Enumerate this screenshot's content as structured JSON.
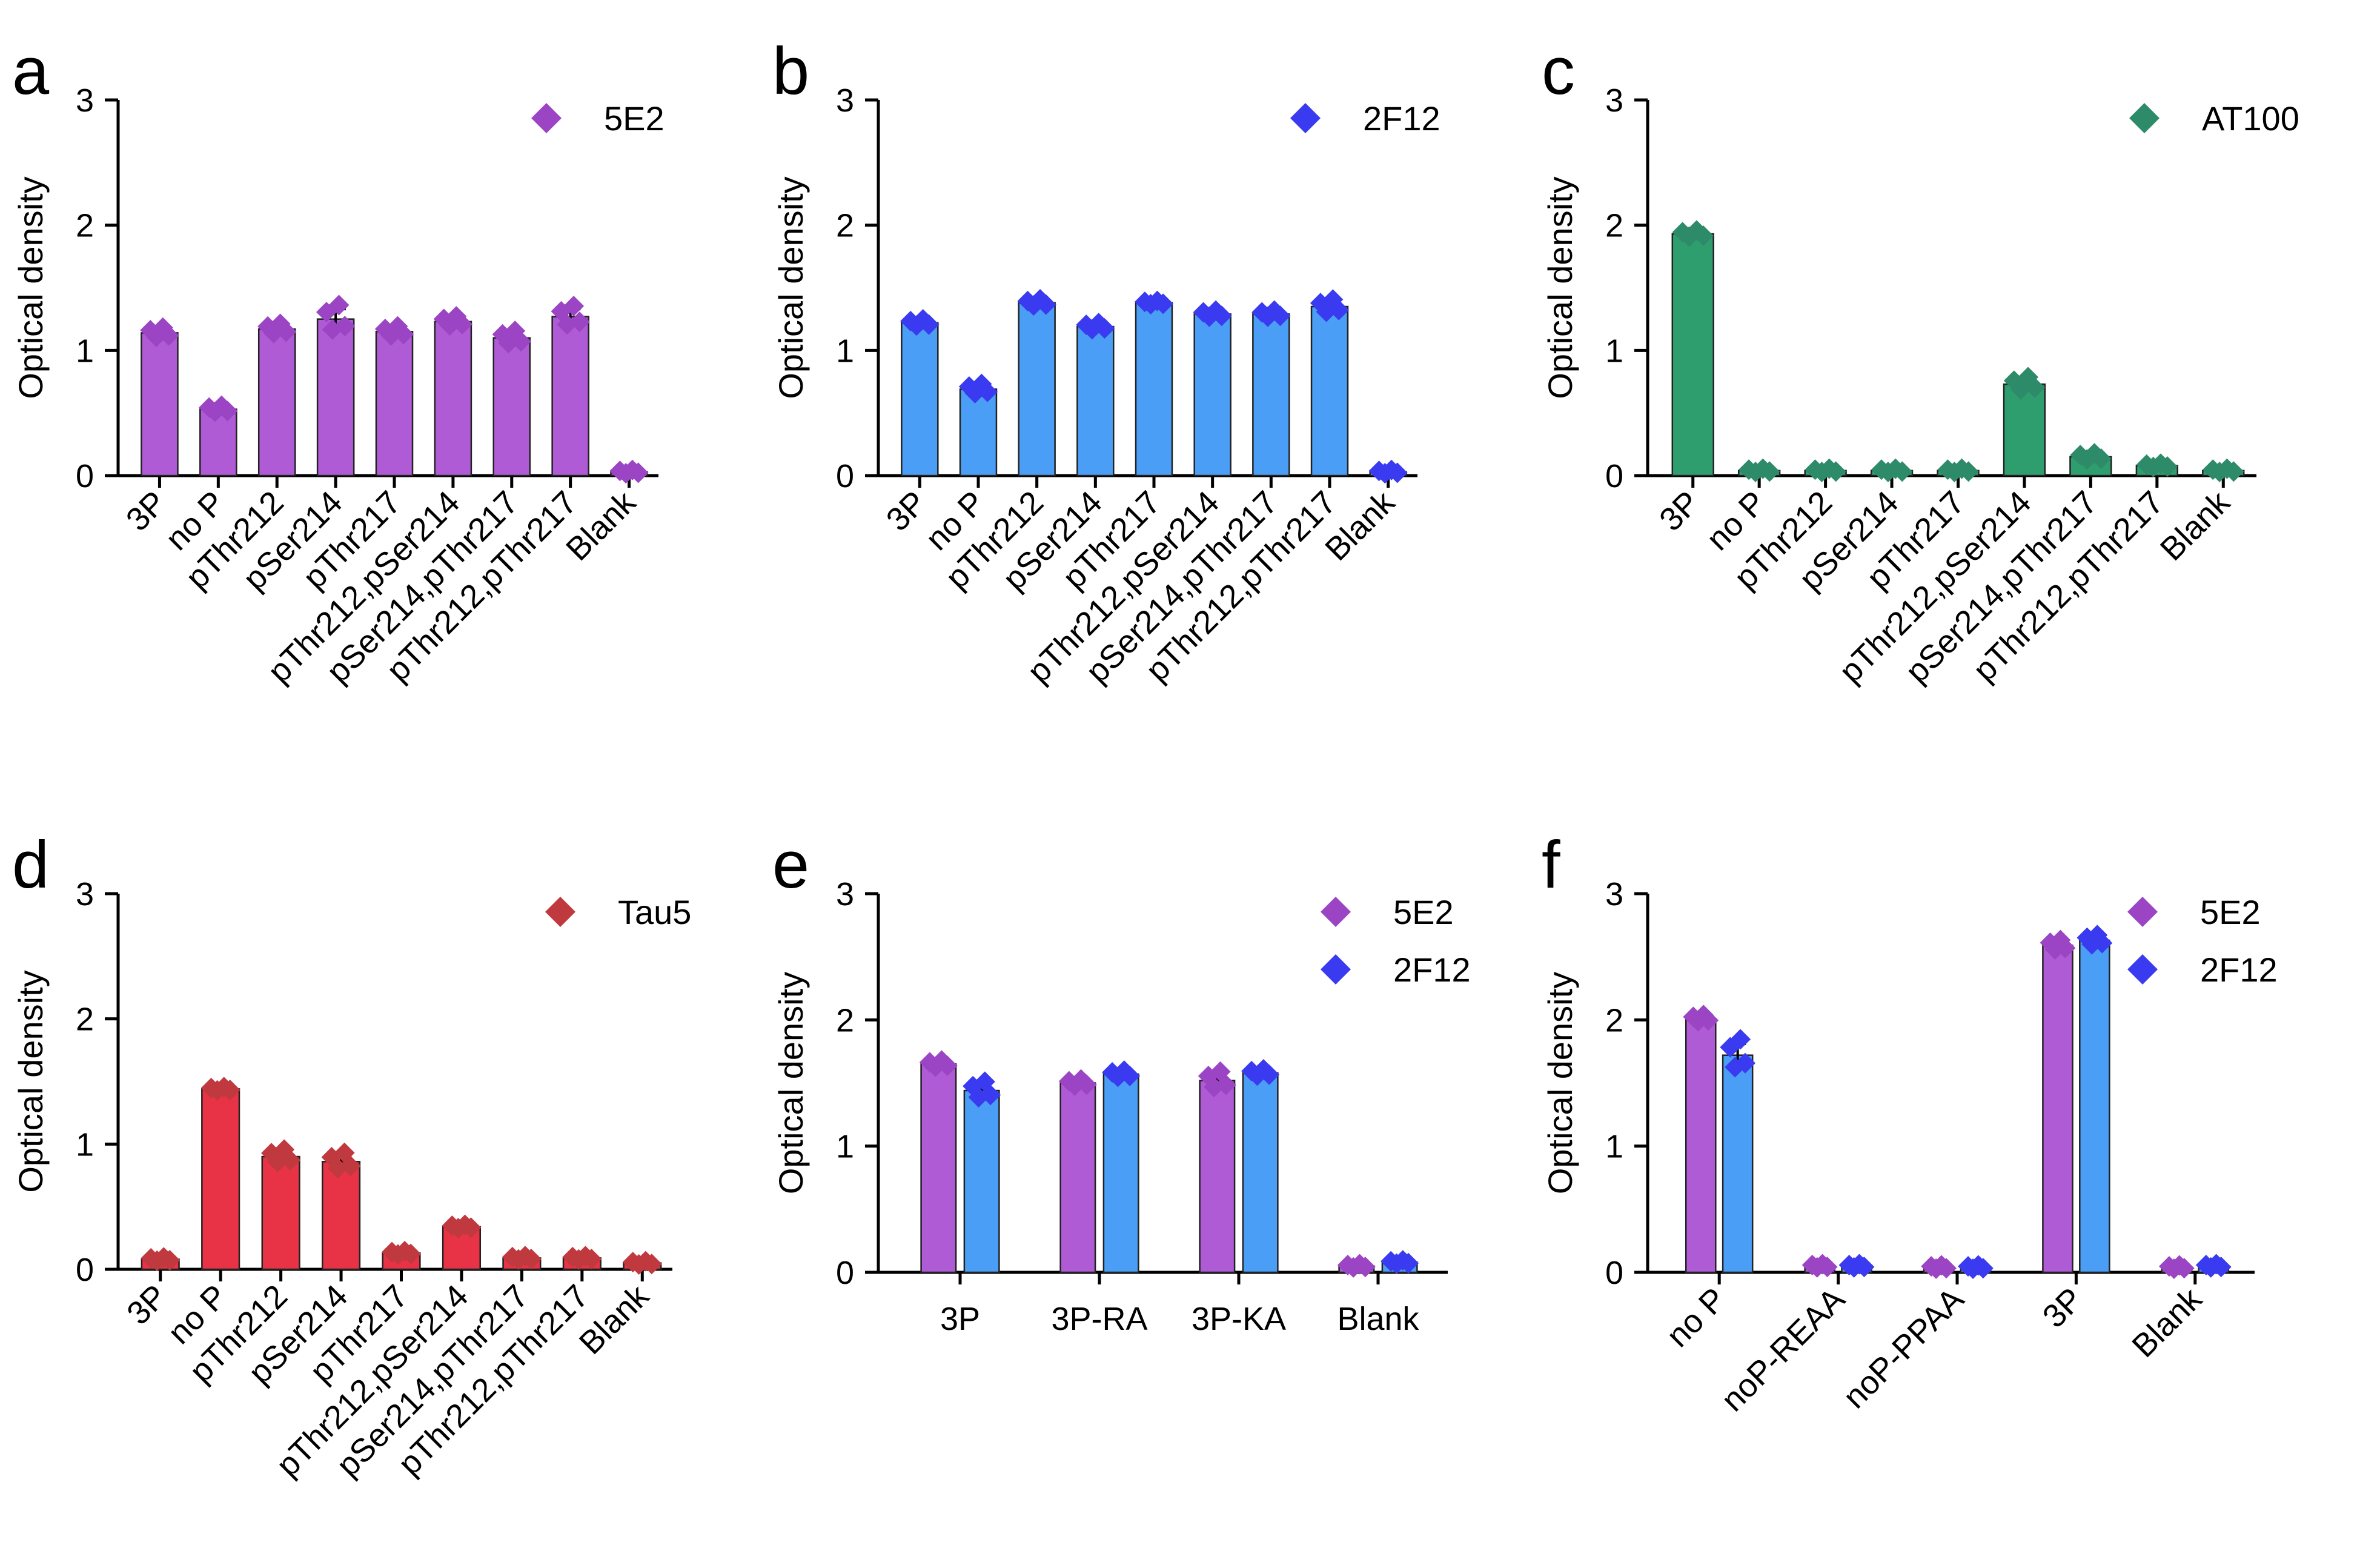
{
  "chart_data": [
    {
      "type": "bar",
      "panel": "a",
      "ylabel": "Optical density",
      "ylim": [
        0,
        3
      ],
      "yticks": [
        "0",
        "1",
        "2",
        "3"
      ],
      "categories": [
        "3P",
        "no P",
        "pThr212",
        "pSer214",
        "pThr217",
        "pThr212,pSer214",
        "pSer214,pThr217",
        "pThr212,pThr217",
        "Blank"
      ],
      "series": [
        {
          "name": "5E2",
          "color": "#b05bd6",
          "marker_color": "#9b45c4",
          "values": [
            1.14,
            0.53,
            1.17,
            1.25,
            1.15,
            1.23,
            1.1,
            1.27,
            0.03
          ],
          "errors": [
            0.03,
            0.02,
            0.03,
            0.08,
            0.03,
            0.03,
            0.04,
            0.06,
            0.005
          ]
        }
      ],
      "legend_position": "top-right"
    },
    {
      "type": "bar",
      "panel": "b",
      "ylabel": "Optical density",
      "ylim": [
        0,
        3
      ],
      "yticks": [
        "0",
        "1",
        "2",
        "3"
      ],
      "categories": [
        "3P",
        "no P",
        "pThr212",
        "pSer214",
        "pThr217",
        "pThr212,pSer214",
        "pSer214,pThr217",
        "pThr212,pThr217",
        "Blank"
      ],
      "series": [
        {
          "name": "2F12",
          "color": "#4a9ef5",
          "marker_color": "#3a3af0",
          "values": [
            1.22,
            0.69,
            1.38,
            1.19,
            1.38,
            1.29,
            1.29,
            1.35,
            0.03
          ],
          "errors": [
            0.02,
            0.03,
            0.02,
            0.02,
            0.01,
            0.02,
            0.02,
            0.04,
            0.005
          ]
        }
      ],
      "legend_position": "top-right"
    },
    {
      "type": "bar",
      "panel": "c",
      "ylabel": "Optical density",
      "ylim": [
        0,
        3
      ],
      "yticks": [
        "0",
        "1",
        "2",
        "3"
      ],
      "categories": [
        "3P",
        "no P",
        "pThr212",
        "pSer214",
        "pThr217",
        "pThr212,pSer214",
        "pSer214,pThr217",
        "pThr212,pThr217",
        "Blank"
      ],
      "series": [
        {
          "name": "AT100",
          "color": "#2e9e6e",
          "marker_color": "#2e8b6a",
          "values": [
            1.93,
            0.04,
            0.04,
            0.04,
            0.04,
            0.73,
            0.15,
            0.08,
            0.04
          ],
          "errors": [
            0.02,
            0.005,
            0.005,
            0.005,
            0.005,
            0.04,
            0.02,
            0.01,
            0.005
          ]
        }
      ],
      "legend_position": "top-right"
    },
    {
      "type": "bar",
      "panel": "d",
      "ylabel": "Optical density",
      "ylim": [
        0,
        3
      ],
      "yticks": [
        "0",
        "1",
        "2",
        "3"
      ],
      "categories": [
        "3P",
        "no P",
        "pThr212",
        "pSer214",
        "pThr217",
        "pThr212,pSer214",
        "pSer214,pThr217",
        "pThr212,pThr217",
        "Blank"
      ],
      "series": [
        {
          "name": "Tau5",
          "color": "#e83245",
          "marker_color": "#c0393e",
          "values": [
            0.08,
            1.44,
            0.9,
            0.86,
            0.13,
            0.34,
            0.09,
            0.09,
            0.05
          ],
          "errors": [
            0.005,
            0.01,
            0.04,
            0.05,
            0.01,
            0.01,
            0.01,
            0.01,
            0.005
          ]
        }
      ],
      "legend_position": "top-right"
    },
    {
      "type": "bar",
      "panel": "e",
      "ylabel": "Optical density",
      "ylim": [
        0,
        3
      ],
      "yticks": [
        "0",
        "1",
        "2",
        "3"
      ],
      "categories": [
        "3P",
        "3P-RA",
        "3P-KA",
        "Blank"
      ],
      "series": [
        {
          "name": "5E2",
          "color": "#b05bd6",
          "marker_color": "#9b45c4",
          "values": [
            1.65,
            1.5,
            1.52,
            0.05
          ],
          "errors": [
            0.02,
            0.02,
            0.05,
            0.005
          ]
        },
        {
          "name": "2F12",
          "color": "#4a9ef5",
          "marker_color": "#3a3af0",
          "values": [
            1.44,
            1.57,
            1.58,
            0.08
          ],
          "errors": [
            0.05,
            0.02,
            0.02,
            0.01
          ]
        }
      ],
      "legend_position": "top-right"
    },
    {
      "type": "bar",
      "panel": "f",
      "ylabel": "Optical density",
      "ylim": [
        0,
        3
      ],
      "yticks": [
        "0",
        "1",
        "2",
        "3"
      ],
      "categories": [
        "no P",
        "noP-REAA",
        "noP-PPAA",
        "3P",
        "Blank"
      ],
      "series": [
        {
          "name": "5E2",
          "color": "#b05bd6",
          "marker_color": "#9b45c4",
          "values": [
            2.01,
            0.05,
            0.04,
            2.59,
            0.04
          ],
          "errors": [
            0.02,
            0.005,
            0.005,
            0.03,
            0.005
          ]
        },
        {
          "name": "2F12",
          "color": "#4a9ef5",
          "marker_color": "#3a3af0",
          "values": [
            1.72,
            0.05,
            0.04,
            2.63,
            0.05
          ],
          "errors": [
            0.09,
            0.005,
            0.005,
            0.03,
            0.005
          ]
        }
      ],
      "legend_position": "top-right"
    }
  ]
}
